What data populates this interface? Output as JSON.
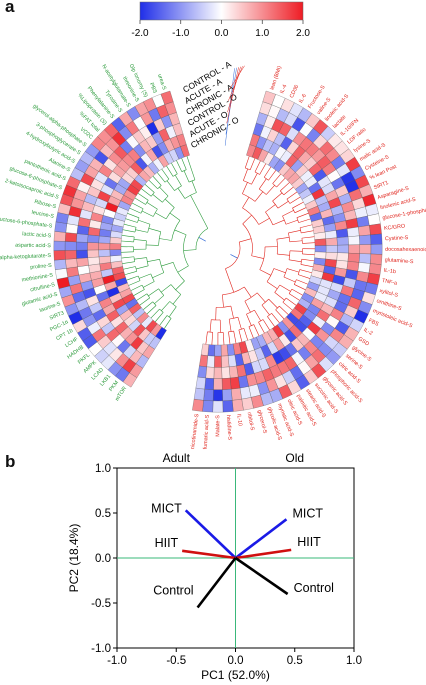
{
  "panels": {
    "a": "a",
    "b": "b"
  },
  "colorbar": {
    "ticks": [
      "-2.0",
      "-1.0",
      "0.0",
      "1.0",
      "2.0"
    ],
    "values": [
      -2,
      -1,
      0,
      1,
      2
    ],
    "colors": {
      "low": "#1f2ee8",
      "mid": "#ffffff",
      "high": "#ee1c24"
    }
  },
  "heatmap": {
    "rings": [
      "CHRONIC - O",
      "ACUTE - O",
      "CONTROL - O",
      "CHRONIC - A",
      "ACUTE - A",
      "CONTROL - A"
    ],
    "green_labels": [
      "mTOR",
      "PKM",
      "LKB1",
      "LCAD",
      "AMPK",
      "PKFL",
      "HADHB",
      "LCHF",
      "CPT 1b",
      "PGC-1α",
      "SIRT3",
      "taurine-S",
      "glutamic acid-S",
      "citrulline-S",
      "methionine-S",
      "proline-S",
      "alpha-ketoglutarate-S",
      "aspartic acid-S",
      "lactic acid-S",
      "fructose-6-phosphate-S",
      "leucine-S",
      "Ribose-S",
      "2-ketoisocaproic acid-S",
      "glucose-6-phosphate-S",
      "pantothenic acid-S",
      "Alanine-S",
      "4-hydroxybutyric acid-S",
      "3-phosphoglycerate-S",
      "glycerol-alpha-phosphate-S",
      "VO2C",
      "%FAT total",
      "%Lipoprotein (S)",
      "Phenylalanine-S",
      "Tyrosine-S",
      "N-acetylglutamate-S",
      "threonine-S",
      "Glp Ionomy (S)",
      "PBS",
      "urea-S"
    ],
    "red_labels": [
      "lean (BMI)",
      "IL-4",
      "CD36",
      "IL-6",
      "Fructose-S",
      "valine-S",
      "linoleic acid-S",
      "lactate",
      "IL-10/IFN",
      "LDF ratio",
      "lysine-S",
      "malic acid-S",
      "Cysteine-S",
      "% lean Post",
      "SIRT1",
      "Asparagine-S",
      "linolenic acid-S",
      "glucose-1-phosphate-S",
      "KC/GRO",
      "Cystine-S",
      "docosahexaenoic acid-S",
      "glutamine-S",
      "IL-1b",
      "TNF-a",
      "xylitol-S",
      "ornithine-S",
      "myristoleic acid-S",
      "FBS",
      "IL-2",
      "GSD",
      "glycine-S",
      "serine-S",
      "citric acid-S",
      "phosphoric acid-S",
      "glyceric acid-S",
      "succinic acid-S",
      "stearic acid-S",
      "palmitic acid-S",
      "oleic acid-S",
      "myristic acid-S",
      "glycolic acid-S",
      "glycerol-S",
      "ribitol-S",
      "IL-10",
      "histidine-S",
      "Malate-S",
      "fumaric acid-S",
      "nicotinamide-S"
    ]
  },
  "biplot": {
    "chart_data": {
      "type": "scatter",
      "xlabel": "PC1 (52.0%)",
      "ylabel": "PC2 (18.4%)",
      "xlim": [
        -1.0,
        1.0
      ],
      "ylim": [
        -1.0,
        1.0
      ],
      "xticks": [
        "-1.0",
        "-0.5",
        "0.0",
        "0.5",
        "1.0"
      ],
      "yticks": [
        "1.0",
        "0.5",
        "0.0",
        "-0.5",
        "-1.0"
      ],
      "xtick_values": [
        -1.0,
        -0.5,
        0.0,
        0.5,
        1.0
      ],
      "ytick_values": [
        1.0,
        0.5,
        0.0,
        -0.5,
        -1.0
      ],
      "group_labels": [
        "Adult",
        "Old"
      ],
      "vectors": [
        {
          "name": "MICT",
          "x": -0.42,
          "y": 0.53,
          "color": "#1a1ae6"
        },
        {
          "name": "HIIT",
          "x": -0.45,
          "y": 0.08,
          "color": "#d01010"
        },
        {
          "name": "Control",
          "x": -0.32,
          "y": -0.55,
          "color": "#000000"
        },
        {
          "name": "MICT",
          "x": 0.43,
          "y": 0.43,
          "color": "#1a1ae6"
        },
        {
          "name": "HIIT",
          "x": 0.47,
          "y": 0.09,
          "color": "#d01010"
        },
        {
          "name": "Control",
          "x": 0.44,
          "y": -0.4,
          "color": "#000000"
        }
      ]
    }
  }
}
